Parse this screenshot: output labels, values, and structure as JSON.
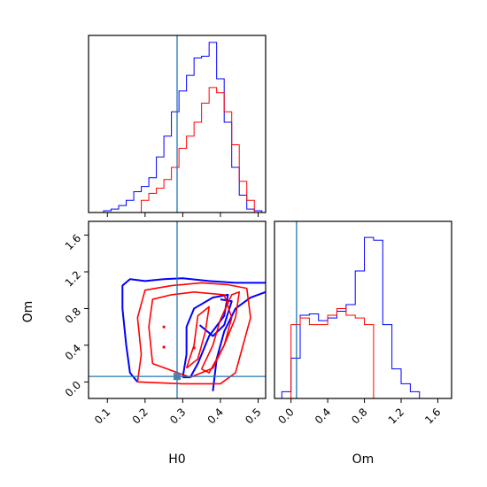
{
  "chart_data": {
    "type": "corner",
    "parameters": [
      "H0",
      "Om"
    ],
    "colors": {
      "series_a": "#0000ff",
      "series_b": "#ff0000",
      "truth": "#1f77b4"
    },
    "truth": {
      "H0": 0.285,
      "Om": 0.06
    },
    "axes": {
      "H0": {
        "label": "H0",
        "range": [
          0.05,
          0.52
        ],
        "ticks": [
          "0.1",
          "0.2",
          "0.3",
          "0.4",
          "0.5"
        ]
      },
      "Om": {
        "label": "Om",
        "range": [
          -0.18,
          1.75
        ],
        "ticks": [
          "0.0",
          "0.4",
          "0.8",
          "1.2",
          "1.6"
        ]
      }
    },
    "hist_H0": {
      "bins": [
        0.05,
        0.07,
        0.09,
        0.11,
        0.13,
        0.15,
        0.17,
        0.19,
        0.21,
        0.23,
        0.25,
        0.27,
        0.29,
        0.31,
        0.33,
        0.35,
        0.37,
        0.39,
        0.41,
        0.43,
        0.45,
        0.47,
        0.49,
        0.51
      ],
      "series": [
        {
          "values": [
            0,
            0,
            0.01,
            0.02,
            0.04,
            0.07,
            0.12,
            0.15,
            0.2,
            0.32,
            0.44,
            0.58,
            0.7,
            0.79,
            0.89,
            0.9,
            0.98,
            0.77,
            0.52,
            0.26,
            0.1,
            0.02,
            0.01
          ]
        },
        {
          "values": [
            0,
            0,
            0,
            0,
            0,
            0,
            0,
            0.07,
            0.11,
            0.14,
            0.19,
            0.26,
            0.37,
            0.44,
            0.52,
            0.63,
            0.72,
            0.69,
            0.58,
            0.39,
            0.18,
            0.07,
            0
          ]
        }
      ]
    },
    "hist_Om": {
      "bins": [
        -0.1,
        0,
        0.1,
        0.2,
        0.3,
        0.4,
        0.5,
        0.6,
        0.7,
        0.8,
        0.9,
        1.0,
        1.1,
        1.2,
        1.3,
        1.4,
        1.5
      ],
      "series": [
        {
          "values": [
            0.05,
            0.3,
            0.62,
            0.63,
            0.58,
            0.6,
            0.65,
            0.7,
            0.95,
            1.2,
            1.18,
            0.55,
            0.22,
            0.11,
            0.05,
            0
          ]
        },
        {
          "values": [
            0,
            0.55,
            0.6,
            0.55,
            0.55,
            0.62,
            0.67,
            0.62,
            0.6,
            0.55,
            0,
            0,
            0,
            0,
            0,
            0
          ]
        }
      ]
    },
    "contours": {
      "series_a": [
        [
          [
            0.18,
            0.0
          ],
          [
            0.16,
            0.1
          ],
          [
            0.15,
            0.4
          ],
          [
            0.14,
            0.8
          ],
          [
            0.14,
            1.05
          ],
          [
            0.16,
            1.12
          ],
          [
            0.2,
            1.1
          ],
          [
            0.25,
            1.12
          ],
          [
            0.3,
            1.13
          ],
          [
            0.37,
            1.1
          ],
          [
            0.44,
            1.08
          ],
          [
            0.52,
            1.08
          ]
        ],
        [
          [
            0.38,
            -0.1
          ],
          [
            0.39,
            0.25
          ],
          [
            0.41,
            0.55
          ],
          [
            0.44,
            0.8
          ],
          [
            0.48,
            0.92
          ],
          [
            0.52,
            0.98
          ]
        ]
      ],
      "series_a_inner": [
        [
          [
            0.3,
            0.05
          ],
          [
            0.31,
            0.3
          ],
          [
            0.31,
            0.6
          ],
          [
            0.33,
            0.8
          ],
          [
            0.38,
            0.92
          ],
          [
            0.42,
            0.95
          ],
          [
            0.41,
            0.72
          ],
          [
            0.37,
            0.5
          ],
          [
            0.34,
            0.2
          ],
          [
            0.32,
            0.05
          ],
          [
            0.3,
            0.05
          ]
        ],
        [
          [
            0.345,
            0.62
          ],
          [
            0.38,
            0.5
          ],
          [
            0.41,
            0.62
          ],
          [
            0.43,
            0.88
          ],
          [
            0.4,
            0.9
          ]
        ]
      ],
      "series_b": [
        [
          [
            0.18,
            0.0
          ],
          [
            0.19,
            0.3
          ],
          [
            0.18,
            0.7
          ],
          [
            0.2,
            1.0
          ],
          [
            0.27,
            1.05
          ],
          [
            0.35,
            1.08
          ],
          [
            0.42,
            1.06
          ],
          [
            0.47,
            1.02
          ],
          [
            0.48,
            0.7
          ],
          [
            0.46,
            0.4
          ],
          [
            0.44,
            0.1
          ],
          [
            0.4,
            -0.02
          ],
          [
            0.3,
            -0.02
          ],
          [
            0.18,
            0.0
          ]
        ],
        [
          [
            0.22,
            0.2
          ],
          [
            0.21,
            0.6
          ],
          [
            0.22,
            0.9
          ],
          [
            0.27,
            0.95
          ],
          [
            0.33,
            0.98
          ],
          [
            0.41,
            0.95
          ],
          [
            0.43,
            0.7
          ],
          [
            0.41,
            0.4
          ],
          [
            0.38,
            0.15
          ],
          [
            0.32,
            0.05
          ],
          [
            0.22,
            0.2
          ]
        ],
        [
          [
            0.31,
            0.15
          ],
          [
            0.33,
            0.4
          ],
          [
            0.34,
            0.72
          ],
          [
            0.37,
            0.82
          ],
          [
            0.36,
            0.55
          ],
          [
            0.34,
            0.25
          ],
          [
            0.31,
            0.15
          ]
        ],
        [
          [
            0.35,
            0.14
          ],
          [
            0.38,
            0.4
          ],
          [
            0.4,
            0.68
          ],
          [
            0.43,
            0.95
          ],
          [
            0.45,
            0.98
          ],
          [
            0.44,
            0.7
          ],
          [
            0.41,
            0.4
          ],
          [
            0.37,
            0.1
          ],
          [
            0.35,
            0.14
          ]
        ]
      ],
      "series_b_points": [
        [
          0.25,
          0.6
        ],
        [
          0.25,
          0.38
        ],
        [
          0.33,
          0.37
        ]
      ]
    }
  }
}
